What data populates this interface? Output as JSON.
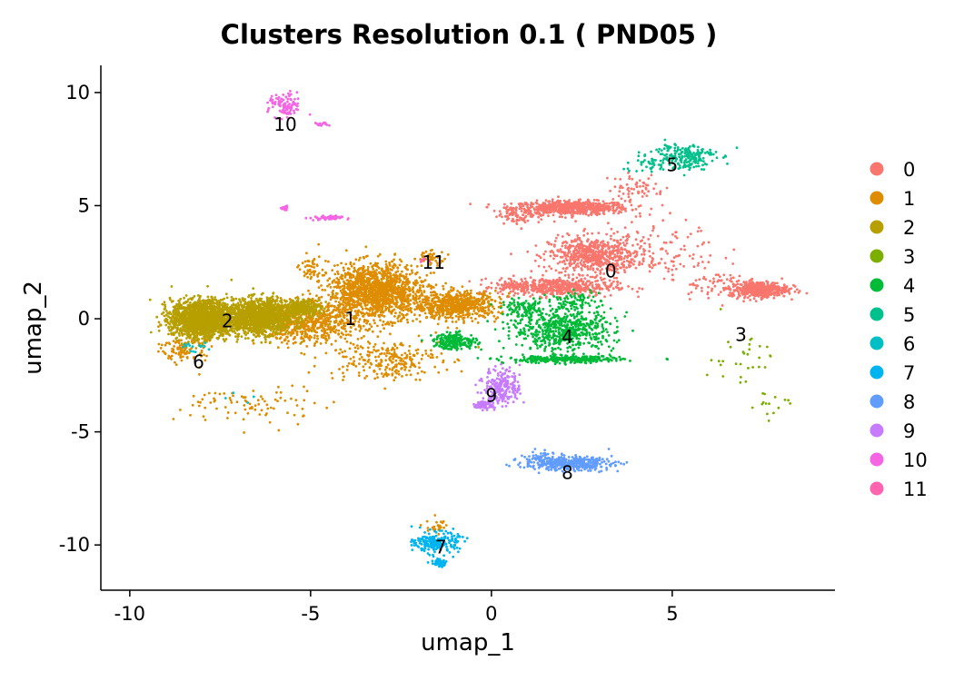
{
  "chart_data": {
    "type": "scatter",
    "title": "Clusters Resolution 0.1 ( PND05 )",
    "xlabel": "umap_1",
    "ylabel": "umap_2",
    "xlim": [
      -10.8,
      9.5
    ],
    "ylim": [
      -12,
      11.2
    ],
    "xticks": [
      -10,
      -5,
      0,
      5
    ],
    "yticks": [
      -10,
      -5,
      0,
      5,
      10
    ],
    "grid": false,
    "legend_position": "right",
    "series": [
      {
        "name": "0",
        "color": "#F8766D",
        "label_pos": [
          3.3,
          2.1
        ],
        "regions": [
          [
            2.2,
            4.9,
            1.6,
            0.3,
            700
          ],
          [
            2.8,
            2.8,
            1.2,
            0.8,
            600
          ],
          [
            1.8,
            1.4,
            1.6,
            0.4,
            500
          ],
          [
            7.4,
            1.3,
            0.8,
            0.35,
            450
          ],
          [
            4.3,
            3.0,
            2.0,
            1.4,
            150
          ],
          [
            0.8,
            4.6,
            0.6,
            0.4,
            80
          ],
          [
            4.0,
            5.8,
            0.8,
            0.6,
            60
          ],
          [
            6.1,
            1.5,
            0.9,
            0.6,
            60
          ],
          [
            0.6,
            1.5,
            0.5,
            0.3,
            50
          ]
        ]
      },
      {
        "name": "1",
        "color": "#DE8C00",
        "label_pos": [
          -3.9,
          0.0
        ],
        "regions": [
          [
            -3.2,
            1.2,
            1.3,
            1.2,
            1400
          ],
          [
            -1.0,
            0.6,
            1.2,
            0.6,
            650
          ],
          [
            -5.0,
            -0.2,
            1.5,
            0.9,
            600
          ],
          [
            -3.0,
            -1.8,
            1.6,
            0.9,
            250
          ],
          [
            -6.5,
            -3.8,
            2.0,
            0.9,
            90
          ],
          [
            -8.5,
            -1.3,
            0.6,
            0.6,
            120
          ],
          [
            -5.0,
            2.2,
            0.3,
            0.8,
            50
          ],
          [
            -1.7,
            2.7,
            0.5,
            0.3,
            40
          ],
          [
            -1.5,
            -9.2,
            0.3,
            0.4,
            25
          ]
        ]
      },
      {
        "name": "2",
        "color": "#B79F00",
        "label_pos": [
          -7.3,
          -0.1
        ],
        "regions": [
          [
            -8.0,
            0.0,
            0.85,
            0.8,
            1800
          ],
          [
            -6.4,
            0.1,
            0.9,
            0.75,
            1300
          ],
          [
            -5.2,
            0.5,
            0.5,
            0.35,
            250
          ]
        ]
      },
      {
        "name": "3",
        "color": "#7CAE00",
        "label_pos": [
          6.9,
          -0.7
        ],
        "regions": [
          [
            6.9,
            -1.7,
            0.9,
            1.4,
            30
          ],
          [
            7.6,
            -3.9,
            0.6,
            0.8,
            15
          ]
        ]
      },
      {
        "name": "4",
        "color": "#00BA38",
        "label_pos": [
          2.1,
          -0.8
        ],
        "regions": [
          [
            2.0,
            -0.5,
            1.4,
            0.9,
            600
          ],
          [
            2.0,
            -1.8,
            1.6,
            0.15,
            300
          ],
          [
            -1.0,
            -1.0,
            0.6,
            0.35,
            220
          ],
          [
            0.9,
            0.4,
            0.6,
            0.4,
            100
          ],
          [
            2.3,
            0.8,
            0.7,
            0.4,
            80
          ]
        ]
      },
      {
        "name": "5",
        "color": "#00C08B",
        "label_pos": [
          5.0,
          6.8
        ],
        "regions": [
          [
            5.3,
            7.2,
            0.9,
            0.6,
            200
          ],
          [
            4.3,
            6.8,
            0.7,
            0.35,
            30
          ]
        ]
      },
      {
        "name": "6",
        "color": "#00BFC4",
        "label_pos": [
          -8.1,
          -1.9
        ],
        "regions": [
          [
            -8.2,
            -1.3,
            0.4,
            0.35,
            15
          ],
          [
            -7.0,
            -3.5,
            0.4,
            0.4,
            4
          ]
        ]
      },
      {
        "name": "7",
        "color": "#00B4F0",
        "label_pos": [
          -1.4,
          -10.1
        ],
        "regions": [
          [
            -1.5,
            -9.9,
            0.6,
            0.45,
            220
          ],
          [
            -1.45,
            -10.8,
            0.2,
            0.15,
            60
          ]
        ]
      },
      {
        "name": "8",
        "color": "#619CFF",
        "label_pos": [
          2.1,
          -6.8
        ],
        "regions": [
          [
            2.1,
            -6.4,
            1.2,
            0.3,
            380
          ],
          [
            1.5,
            -6.1,
            0.5,
            0.3,
            40
          ]
        ]
      },
      {
        "name": "9",
        "color": "#C77CFF",
        "label_pos": [
          0.0,
          -3.4
        ],
        "regions": [
          [
            0.3,
            -3.0,
            0.5,
            0.8,
            230
          ],
          [
            -0.2,
            -3.8,
            0.3,
            0.2,
            70
          ]
        ]
      },
      {
        "name": "10",
        "color": "#F564E3",
        "label_pos": [
          -5.7,
          8.6
        ],
        "regions": [
          [
            -5.7,
            9.4,
            0.45,
            0.55,
            100
          ],
          [
            -4.7,
            8.6,
            0.2,
            0.1,
            15
          ],
          [
            -5.7,
            4.9,
            0.1,
            0.15,
            15
          ],
          [
            -4.6,
            4.45,
            0.45,
            0.1,
            50
          ]
        ]
      },
      {
        "name": "11",
        "color": "#FF64B0",
        "label_pos": [
          -1.6,
          2.5
        ],
        "regions": [
          [
            -1.9,
            2.5,
            0.2,
            0.15,
            6
          ]
        ]
      }
    ]
  }
}
